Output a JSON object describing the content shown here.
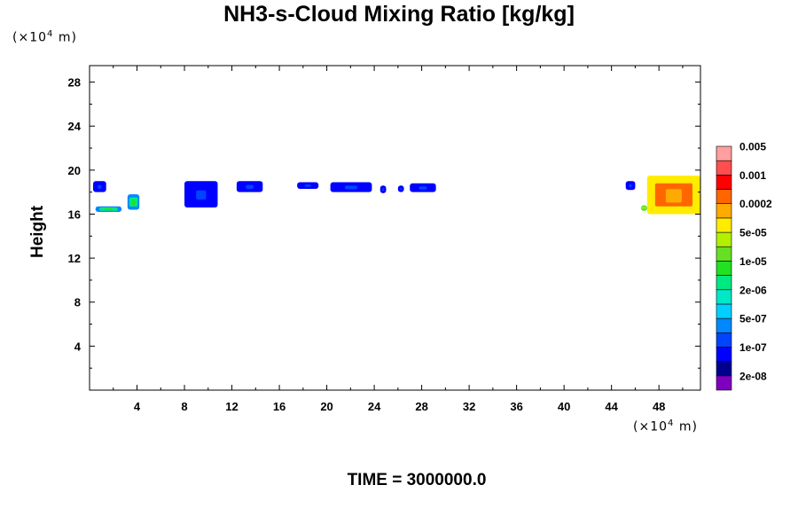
{
  "chart_data": {
    "type": "contour",
    "title": "NH3-s-Cloud Mixing Ratio [kg/kg]",
    "ylabel": "Height",
    "x_unit_text": "m",
    "y_unit_text": "m",
    "unit_scale": "10",
    "unit_exponent": "4",
    "footer": "TIME = 3000000.0",
    "xlim": [
      0,
      51.5
    ],
    "ylim": [
      0,
      29.5
    ],
    "x_ticks": [
      4,
      8,
      12,
      16,
      20,
      24,
      28,
      32,
      36,
      40,
      44,
      48
    ],
    "y_ticks": [
      4,
      8,
      12,
      16,
      20,
      24,
      28
    ],
    "colorbar": {
      "colors": [
        "#7f00bf",
        "#00008f",
        "#0000ff",
        "#0044ff",
        "#0088ff",
        "#00d0ff",
        "#00e8c8",
        "#00e882",
        "#22e022",
        "#66e022",
        "#b2f000",
        "#ffec00",
        "#ffaa00",
        "#ff6600",
        "#ff0000",
        "#ff4e4e",
        "#ff9f9f"
      ],
      "labels": [
        "2e-08",
        "1e-07",
        "5e-07",
        "2e-06",
        "1e-05",
        "5e-05",
        "0.0002",
        "0.001",
        "0.005"
      ]
    },
    "cloud_regions": [
      {
        "x": [
          0.3,
          1.4
        ],
        "y": [
          18.0,
          19.0
        ],
        "level": "1e-07"
      },
      {
        "x": [
          0.5,
          2.7
        ],
        "y": [
          16.2,
          16.7
        ],
        "level": "2e-06"
      },
      {
        "x": [
          3.2,
          4.2
        ],
        "y": [
          16.4,
          17.8
        ],
        "level": "2e-06"
      },
      {
        "x": [
          8.0,
          10.8
        ],
        "y": [
          16.6,
          19.0
        ],
        "level": "1e-07"
      },
      {
        "x": [
          12.4,
          14.6
        ],
        "y": [
          18.0,
          19.0
        ],
        "level": "1e-07"
      },
      {
        "x": [
          17.5,
          19.3
        ],
        "y": [
          18.3,
          18.9
        ],
        "level": "1e-07"
      },
      {
        "x": [
          20.3,
          23.8
        ],
        "y": [
          18.0,
          18.9
        ],
        "level": "1e-07"
      },
      {
        "x": [
          24.5,
          25.0
        ],
        "y": [
          17.9,
          18.6
        ],
        "level": "1e-07"
      },
      {
        "x": [
          26.0,
          26.5
        ],
        "y": [
          18.0,
          18.6
        ],
        "level": "1e-07"
      },
      {
        "x": [
          27.0,
          29.2
        ],
        "y": [
          18.0,
          18.8
        ],
        "level": "1e-07"
      },
      {
        "x": [
          45.2,
          46.0
        ],
        "y": [
          18.2,
          19.0
        ],
        "level": "1e-07"
      },
      {
        "x": [
          46.5,
          47.0
        ],
        "y": [
          16.3,
          16.8
        ],
        "level": "5e-05"
      },
      {
        "x": [
          47.0,
          51.5
        ],
        "y": [
          16.0,
          19.5
        ],
        "level": "0.001"
      }
    ]
  }
}
